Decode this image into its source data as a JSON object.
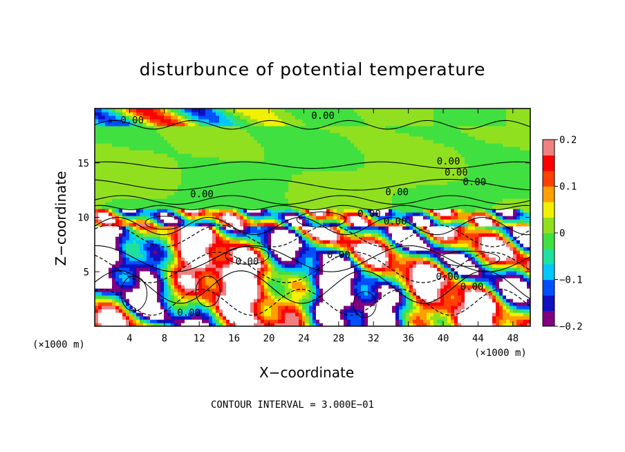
{
  "chart_data": {
    "type": "heatmap",
    "title": "disturbunce of potential temperature",
    "xlabel": "X−coordinate",
    "ylabel": "Z−coordinate",
    "x_unit_left": "(×1000 m)",
    "x_unit_right": "(×1000 m)",
    "xlim": [
      0,
      50
    ],
    "ylim": [
      0,
      20
    ],
    "x_ticks": [
      4,
      8,
      12,
      16,
      20,
      24,
      28,
      32,
      36,
      40,
      44,
      48
    ],
    "y_ticks": [
      5,
      10,
      15
    ],
    "colorbar": {
      "range": [
        -0.2,
        0.2
      ],
      "tick_values": [
        0.2,
        0.1,
        0,
        -0.1,
        -0.2
      ],
      "tick_labels": [
        "0.2",
        "0.1",
        "0",
        "−0.1",
        "−0.2"
      ],
      "colors": [
        "#800080",
        "#1010c0",
        "#0050ff",
        "#00c8ff",
        "#20e0a0",
        "#40e040",
        "#90e020",
        "#f0f000",
        "#ffa000",
        "#ff4000",
        "#ff0000",
        "#f08080"
      ]
    },
    "contour_interval_text": "CONTOUR INTERVAL = 3.000E−01",
    "contour_labels": [
      {
        "text": "0.00",
        "x": 4.3,
        "z": 18.9
      },
      {
        "text": "0.00",
        "x": 26.2,
        "z": 19.3
      },
      {
        "text": "0.00",
        "x": 12.3,
        "z": 12.1
      },
      {
        "text": "0.00",
        "x": 34.7,
        "z": 12.3
      },
      {
        "text": "0.00",
        "x": 31.5,
        "z": 10.3
      },
      {
        "text": "0.00",
        "x": 34.5,
        "z": 9.6
      },
      {
        "text": "0.00",
        "x": 40.6,
        "z": 15.1
      },
      {
        "text": "0.00",
        "x": 41.5,
        "z": 14.1
      },
      {
        "text": "0.00",
        "x": 43.6,
        "z": 13.2
      },
      {
        "text": "0.00",
        "x": 28.0,
        "z": 6.5
      },
      {
        "text": "0.00",
        "x": 17.5,
        "z": 5.9
      },
      {
        "text": "0.00",
        "x": 40.5,
        "z": 4.5
      },
      {
        "text": "0.00",
        "x": 43.3,
        "z": 3.6
      },
      {
        "text": "0.00",
        "x": 10.8,
        "z": 1.2
      }
    ]
  }
}
